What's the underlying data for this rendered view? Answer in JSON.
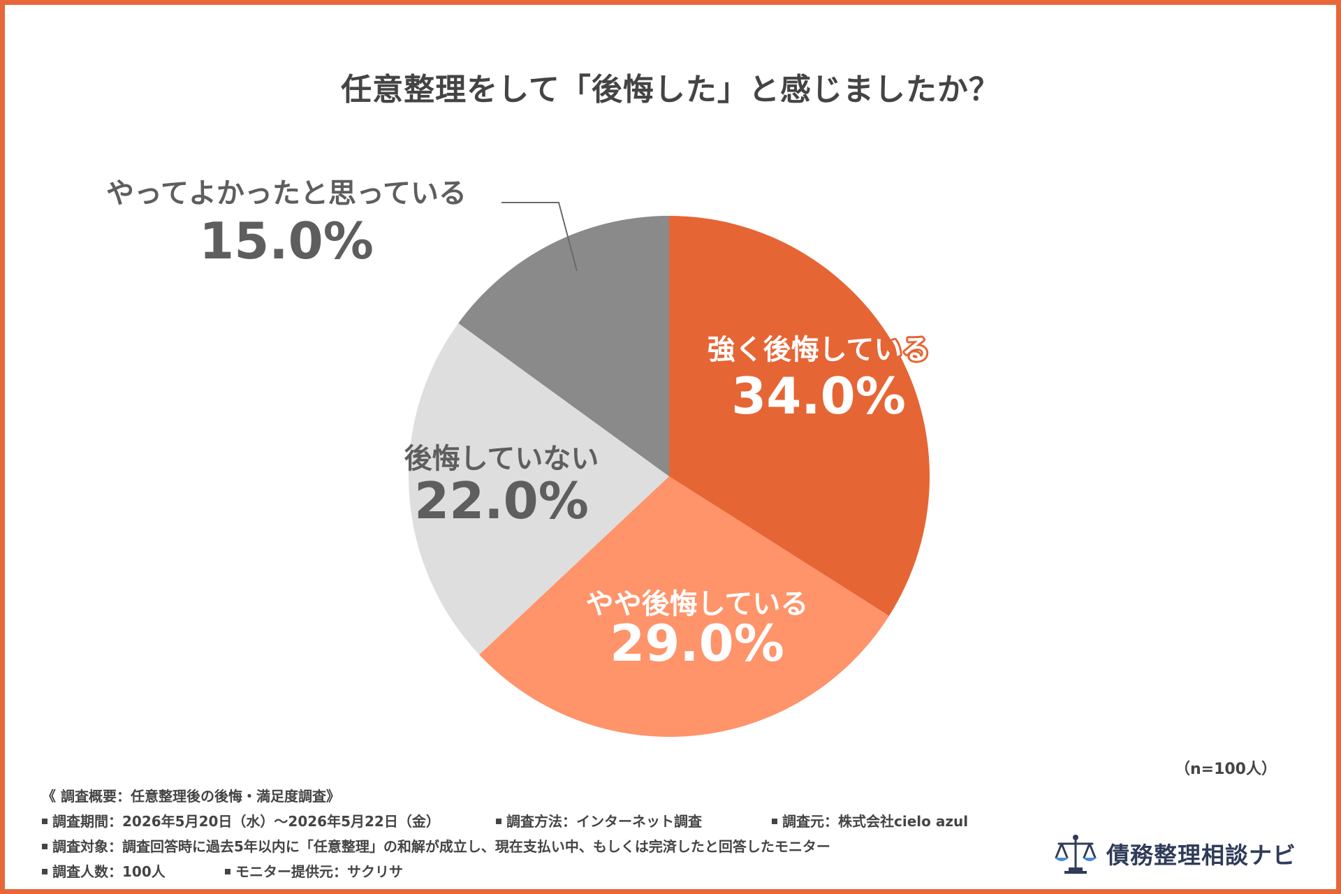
{
  "title": "任意整理をして「後悔した」と感じましたか？",
  "chart_data": {
    "type": "pie",
    "title": "任意整理をして「後悔した」と感じましたか？",
    "start_angle_deg": 0,
    "direction": "clockwise",
    "slices": [
      {
        "label": "強く後悔している",
        "value": 34.0,
        "value_text": "34.0%",
        "color": "#e66535",
        "text_color": "#ffffff",
        "outline_color": "#e66535"
      },
      {
        "label": "やや後悔している",
        "value": 29.0,
        "value_text": "29.0%",
        "color": "#ff936a",
        "text_color": "#ffffff"
      },
      {
        "label": "後悔していない",
        "value": 22.0,
        "value_text": "22.0%",
        "color": "#dedede",
        "text_color": "#5e5e5e"
      },
      {
        "label": "やってよかったと思っている",
        "value": 15.0,
        "value_text": "15.0%",
        "color": "#8a8a8a",
        "text_color": "#5e5e5e",
        "leader_line": true
      }
    ]
  },
  "sample_size": "（n=100人）",
  "survey": {
    "heading": "《 調査概要：任意整理後の後悔・満足度調査》",
    "period": "調査期間：2026年5月20日（水）〜2026年5月22日（金）",
    "method": "調査方法：インターネット調査",
    "source": "調査元：株式会社cielo azul",
    "target": "調査対象：調査回答時に過去5年以内に「任意整理」の和解が成立し、現在支払い中、もしくは完済したと回答したモニター",
    "count": "調査人数：100人",
    "provider": "モニター提供元：サクリサ"
  },
  "brand": {
    "name": "債務整理相談ナビ",
    "icon": "scales-of-justice-icon"
  }
}
